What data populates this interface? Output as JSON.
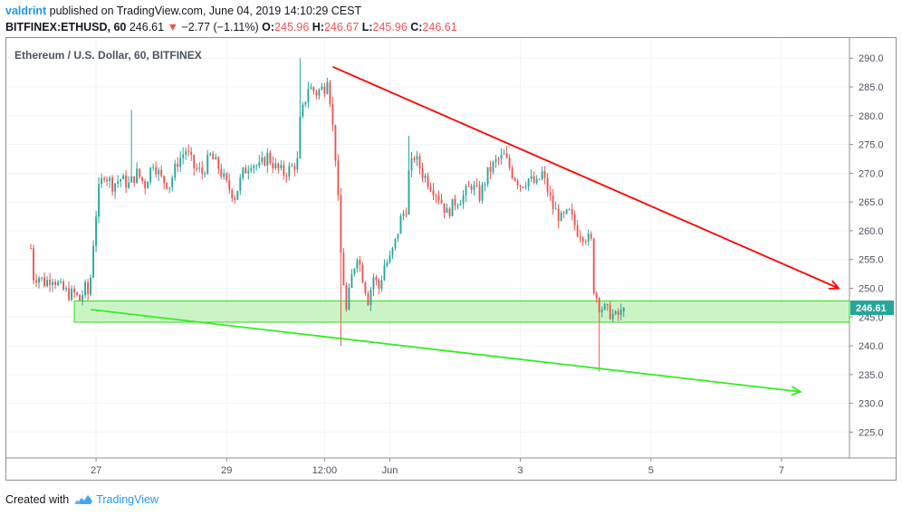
{
  "header": {
    "author": "valdrint",
    "published_text": "published on TradingView.com, June 04, 2019 14:10:29 CEST",
    "symbol": "BITFINEX:ETHUSD, 60",
    "last": "246.61",
    "change": "−2.77 (−1.11%)",
    "open_label": "O:",
    "open": "245.96",
    "high_label": "H:",
    "high": "246.67",
    "low_label": "L:",
    "low": "245.96",
    "close_label": "C:",
    "close": "246.61"
  },
  "footer": {
    "created_with": "Created with",
    "brand": "TradingView",
    "logo_icon": "tradingview-cloud-icon"
  },
  "colors": {
    "up": "#26a69a",
    "down": "#ef5350",
    "resistance_line": "#ff0000",
    "support_line": "#33ee22",
    "zone_fill": "#b5f0ad",
    "zone_border": "#33dd22",
    "price_label_bg": "#26a69a",
    "grid": "#f0f3fa",
    "axis_text": "#4c525e"
  },
  "chart_data": {
    "type": "candlestick",
    "title": "Ethereum / U.S. Dollar, 60, BITFINEX",
    "xlabel": "",
    "ylabel": "",
    "x_ticks": [
      "27",
      "29",
      "12:00",
      "Jun",
      "3",
      "5",
      "7"
    ],
    "y_ticks": [
      225,
      230,
      235,
      240,
      245,
      250,
      255,
      260,
      265,
      270,
      275,
      280,
      285,
      290
    ],
    "ylim": [
      220.5,
      293.5
    ],
    "grid": true,
    "last_price_label": "246.61",
    "x_tick_times": [
      24,
      72,
      108,
      132,
      180,
      228,
      276
    ],
    "xlim": [
      -9,
      301
    ],
    "series": [
      {
        "name": "",
        "key_points": [
          [
            0,
            257,
            251
          ],
          [
            1,
            252,
            251
          ],
          [
            3,
            252,
            250
          ],
          [
            5,
            251,
            251
          ],
          [
            8,
            252,
            251
          ],
          [
            11,
            250,
            250
          ],
          [
            14,
            249,
            249
          ],
          [
            16,
            249,
            248
          ],
          [
            18,
            248,
            250
          ],
          [
            20,
            250,
            249
          ],
          [
            21,
            249,
            252
          ],
          [
            22,
            252,
            258
          ],
          [
            23,
            258,
            263
          ],
          [
            24,
            263,
            267
          ],
          [
            25,
            267,
            270
          ],
          [
            27,
            270,
            268
          ],
          [
            30,
            268,
            269
          ],
          [
            33,
            269,
            268
          ],
          [
            36,
            268,
            270
          ],
          [
            39,
            270,
            268
          ],
          [
            42,
            268,
            272
          ],
          [
            45,
            272,
            269
          ],
          [
            48,
            269,
            268
          ],
          [
            51,
            268,
            272
          ],
          [
            54,
            272,
            274
          ],
          [
            57,
            274,
            271
          ],
          [
            60,
            271,
            270
          ],
          [
            63,
            270,
            273
          ],
          [
            66,
            273,
            271
          ],
          [
            69,
            271,
            268
          ],
          [
            72,
            268,
            266
          ],
          [
            75,
            266,
            270
          ],
          [
            78,
            270,
            272
          ],
          [
            81,
            272,
            271
          ],
          [
            84,
            271,
            273
          ],
          [
            87,
            273,
            271
          ],
          [
            90,
            271,
            270
          ],
          [
            93,
            270,
            271
          ],
          [
            96,
            271,
            272
          ],
          [
            98,
            272,
            279
          ],
          [
            99,
            279,
            285
          ],
          [
            102,
            285,
            284
          ],
          [
            105,
            284,
            285
          ],
          [
            108,
            285,
            287
          ],
          [
            109,
            287,
            283
          ],
          [
            110,
            283,
            273
          ],
          [
            112,
            273,
            265
          ],
          [
            113,
            265,
            256
          ],
          [
            114,
            256,
            246
          ],
          [
            116,
            246,
            252
          ],
          [
            118,
            252,
            256
          ],
          [
            120,
            256,
            252
          ],
          [
            122,
            252,
            248
          ],
          [
            124,
            248,
            252
          ],
          [
            126,
            252,
            250
          ],
          [
            128,
            250,
            254
          ],
          [
            130,
            254,
            255
          ],
          [
            132,
            255,
            258
          ],
          [
            134,
            258,
            262
          ],
          [
            136,
            262,
            264
          ],
          [
            138,
            264,
            270
          ],
          [
            139,
            270,
            273
          ],
          [
            141,
            273,
            270
          ],
          [
            144,
            270,
            268
          ],
          [
            147,
            268,
            266
          ],
          [
            150,
            266,
            263
          ],
          [
            153,
            263,
            265
          ],
          [
            156,
            265,
            266
          ],
          [
            159,
            266,
            268
          ],
          [
            162,
            268,
            266
          ],
          [
            165,
            266,
            270
          ],
          [
            168,
            270,
            272
          ],
          [
            171,
            272,
            273
          ],
          [
            174,
            273,
            270
          ],
          [
            177,
            270,
            268
          ],
          [
            180,
            268,
            269
          ],
          [
            183,
            269,
            268
          ],
          [
            186,
            268,
            270
          ],
          [
            188,
            270,
            267
          ],
          [
            190,
            267,
            264
          ],
          [
            192,
            264,
            262
          ],
          [
            195,
            262,
            263
          ],
          [
            198,
            263,
            260
          ],
          [
            201,
            260,
            259
          ],
          [
            204,
            259,
            258
          ],
          [
            206,
            258,
            250
          ],
          [
            207,
            250,
            247
          ],
          [
            209,
            247,
            246
          ],
          [
            212,
            246,
            245
          ],
          [
            215,
            245,
            246
          ],
          [
            218,
            246,
            246.61
          ]
        ]
      }
    ],
    "annotations": [
      {
        "type": "trendline",
        "color": "#ff0000",
        "from": [
          111,
          288.5
        ],
        "to": [
          297,
          250
        ],
        "arrow": true
      },
      {
        "type": "trendline",
        "color": "#33ee22",
        "from": [
          22,
          246.3
        ],
        "to": [
          283,
          232
        ],
        "arrow": true
      },
      {
        "type": "zone",
        "color": "#33dd22",
        "x_from": 16,
        "x_to": 301,
        "y_from": 244.1,
        "y_to": 247.8
      }
    ]
  }
}
